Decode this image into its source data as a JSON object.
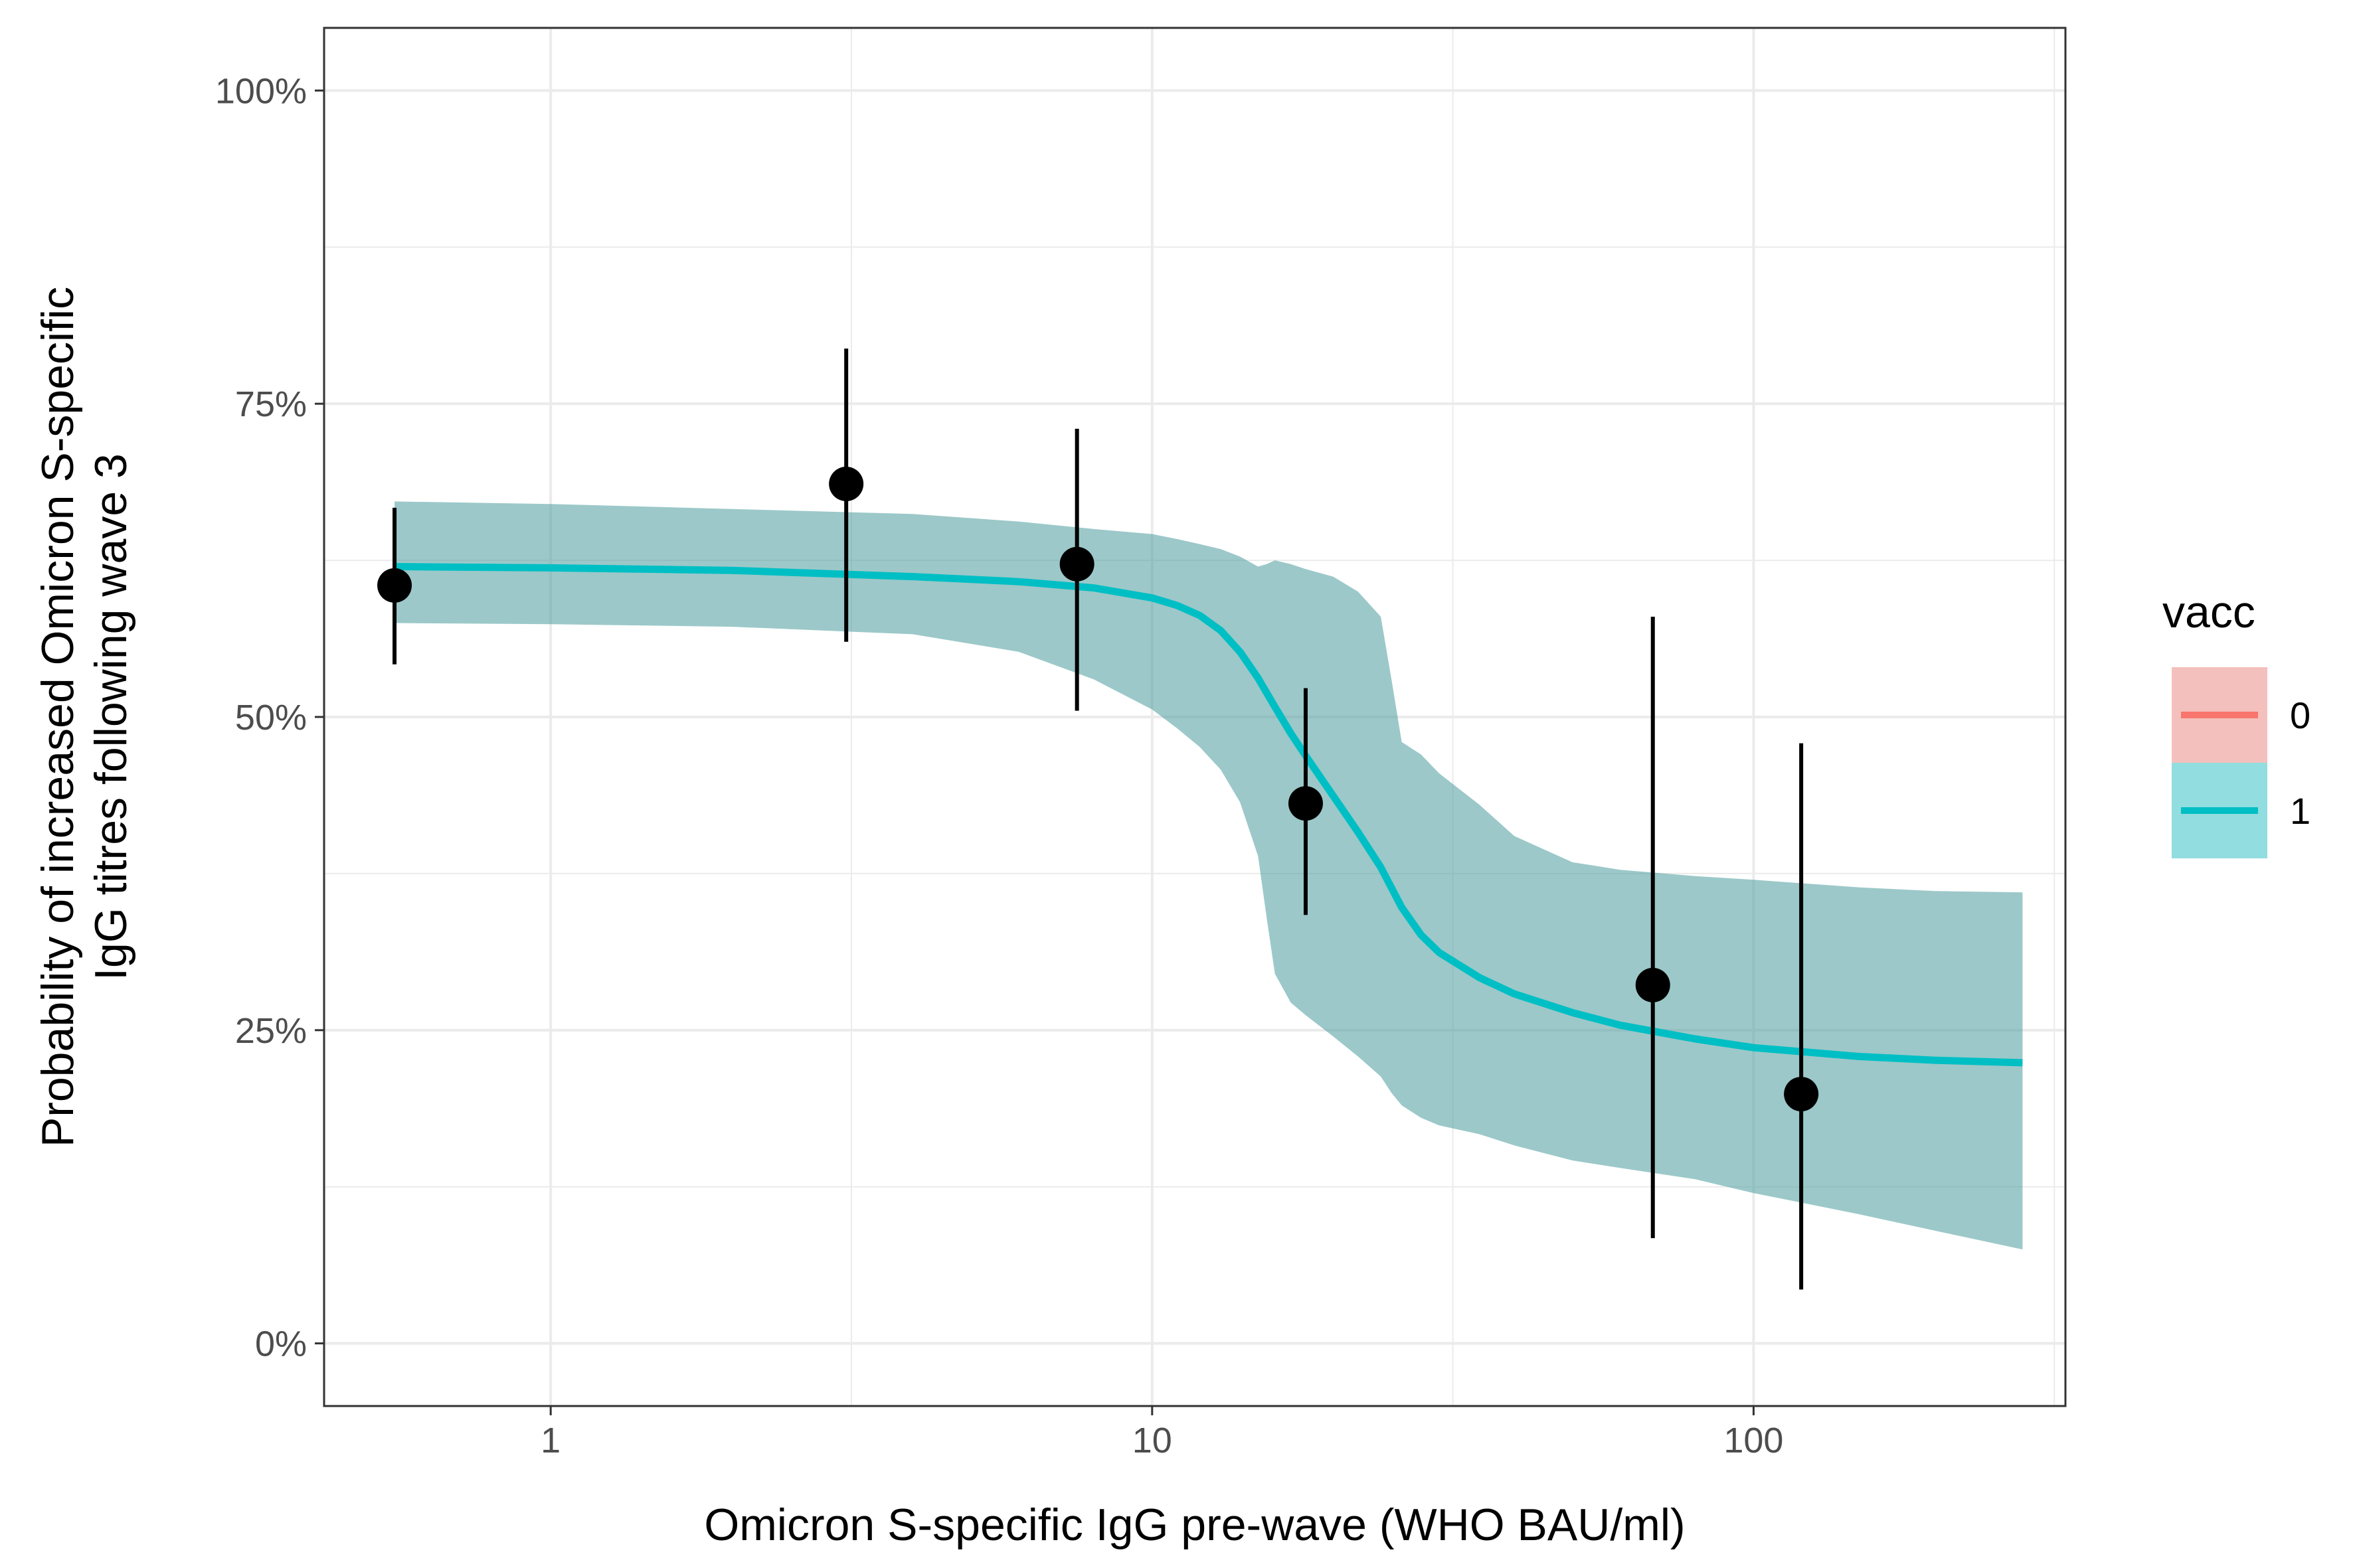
{
  "chart_data": {
    "type": "line",
    "title": "",
    "xlabel": "Omicron S-specific IgG pre-wave (WHO BAU/ml)",
    "ylabel_lines": [
      "Probability of increased Omicron S-specific",
      "IgG titres following wave 3"
    ],
    "x_scale": "log10",
    "xlim": [
      0.42,
      330
    ],
    "ylim": [
      -0.05,
      1.05
    ],
    "x_ticks": [
      {
        "value": 1,
        "label": "1"
      },
      {
        "value": 10,
        "label": "10"
      },
      {
        "value": 100,
        "label": "100"
      }
    ],
    "y_ticks": [
      {
        "value": 0,
        "label": "0%"
      },
      {
        "value": 0.25,
        "label": "25%"
      },
      {
        "value": 0.5,
        "label": "50%"
      },
      {
        "value": 0.75,
        "label": "75%"
      },
      {
        "value": 1,
        "label": "100%"
      }
    ],
    "grid": true,
    "legend": {
      "title": "vacc",
      "position": "right",
      "entries": [
        {
          "label": "0",
          "line_color": "#F8766D",
          "fill_color": "#F8766D"
        },
        {
          "label": "1",
          "line_color": "#00BFC4",
          "fill_color": "#00BFC4"
        }
      ]
    },
    "fit_line": {
      "color": "#00BFC4",
      "x": [
        0.55,
        1,
        2,
        4,
        6,
        8,
        10,
        11,
        12,
        13,
        14,
        15,
        16,
        17,
        18,
        20,
        22,
        24,
        26,
        28,
        30,
        35,
        40,
        50,
        60,
        80,
        100,
        150,
        200,
        280
      ],
      "y": [
        0.62,
        0.619,
        0.617,
        0.612,
        0.608,
        0.603,
        0.595,
        0.589,
        0.581,
        0.569,
        0.552,
        0.531,
        0.508,
        0.487,
        0.469,
        0.437,
        0.408,
        0.38,
        0.348,
        0.326,
        0.312,
        0.292,
        0.279,
        0.264,
        0.254,
        0.243,
        0.236,
        0.229,
        0.226,
        0.224
      ]
    },
    "confidence_band": {
      "color": "#4a9a9c",
      "opacity": 0.55,
      "x": [
        0.55,
        1,
        2,
        4,
        6,
        8,
        10,
        11,
        12,
        13,
        14,
        15,
        15.5,
        16,
        17,
        18,
        20,
        22,
        24,
        25,
        26,
        28,
        30,
        35,
        40,
        50,
        60,
        80,
        100,
        150,
        200,
        280
      ],
      "upper": [
        0.672,
        0.67,
        0.666,
        0.662,
        0.656,
        0.65,
        0.646,
        0.642,
        0.638,
        0.634,
        0.628,
        0.62,
        0.622,
        0.625,
        0.622,
        0.618,
        0.612,
        0.6,
        0.58,
        0.53,
        0.48,
        0.47,
        0.455,
        0.43,
        0.405,
        0.384,
        0.378,
        0.373,
        0.37,
        0.364,
        0.361,
        0.36
      ],
      "lower": [
        0.575,
        0.574,
        0.572,
        0.566,
        0.552,
        0.53,
        0.506,
        0.491,
        0.476,
        0.458,
        0.432,
        0.389,
        0.34,
        0.295,
        0.272,
        0.262,
        0.245,
        0.229,
        0.213,
        0.2,
        0.19,
        0.18,
        0.174,
        0.167,
        0.158,
        0.146,
        0.14,
        0.131,
        0.12,
        0.103,
        0.09,
        0.075
      ]
    },
    "points": {
      "color": "#000000",
      "x": [
        0.55,
        3.1,
        7.5,
        18,
        68,
        120
      ],
      "y": [
        0.605,
        0.686,
        0.622,
        0.431,
        0.286,
        0.199
      ],
      "lower": [
        0.542,
        0.56,
        0.505,
        0.342,
        0.084,
        0.043
      ],
      "upper": [
        0.667,
        0.794,
        0.73,
        0.523,
        0.58,
        0.479
      ]
    }
  }
}
